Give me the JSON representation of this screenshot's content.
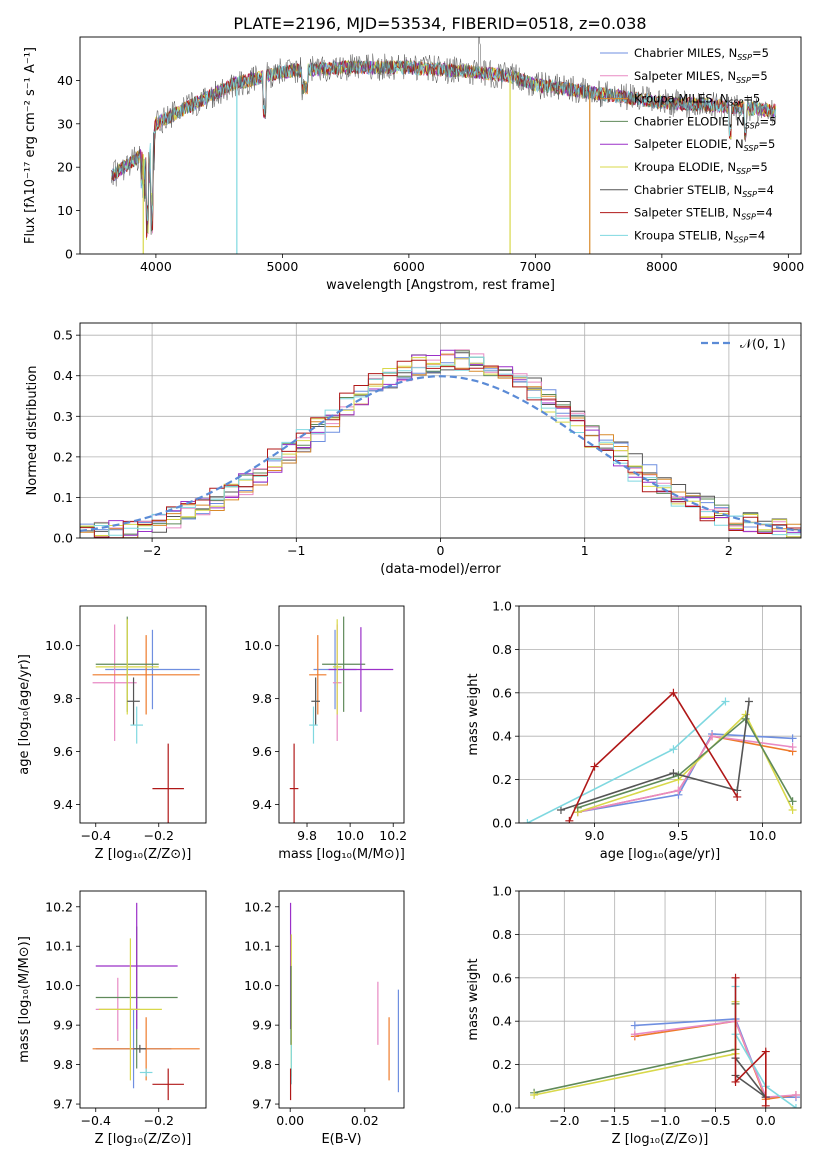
{
  "title": "PLATE=2196, MJD=53534, FIBERID=0518, z=0.038",
  "colors": {
    "chabrier_miles": "#6f8fe0",
    "salpeter_miles": "#e88ac4",
    "kroupa_miles": "#d98a2b",
    "chabrier_elodie": "#5f8a5a",
    "salpeter_elodie": "#9b30c8",
    "kroupa_elodie": "#d8d84a",
    "chabrier_stelib": "#555555",
    "salpeter_stelib": "#b01818",
    "kroupa_stelib": "#7fd8e0",
    "orange": "#ee7a2a",
    "gaussian": "#5b8bd6"
  },
  "legend_spectrum": [
    {
      "key": "chabrier_miles",
      "label": "Chabrier MILES, N",
      "sub": "SSP",
      "suffix": "=5"
    },
    {
      "key": "salpeter_miles",
      "label": "Salpeter MILES, N",
      "sub": "SSP",
      "suffix": "=5"
    },
    {
      "key": "kroupa_miles",
      "label": "Kroupa MILES, N",
      "sub": "SSP",
      "suffix": "=5"
    },
    {
      "key": "chabrier_elodie",
      "label": "Chabrier ELODIE, N",
      "sub": "SSP",
      "suffix": "=5"
    },
    {
      "key": "salpeter_elodie",
      "label": "Salpeter ELODIE, N",
      "sub": "SSP",
      "suffix": "=5"
    },
    {
      "key": "kroupa_elodie",
      "label": "Kroupa ELODIE, N",
      "sub": "SSP",
      "suffix": "=5"
    },
    {
      "key": "chabrier_stelib",
      "label": "Chabrier STELIB, N",
      "sub": "SSP",
      "suffix": "=4"
    },
    {
      "key": "salpeter_stelib",
      "label": "Salpeter STELIB, N",
      "sub": "SSP",
      "suffix": "=4"
    },
    {
      "key": "kroupa_stelib",
      "label": "Kroupa STELIB, N",
      "sub": "SSP",
      "suffix": "=4"
    }
  ],
  "chart_data": [
    {
      "id": "spectrum",
      "type": "line",
      "xlabel": "wavelength [Angstrom, rest frame]",
      "ylabel": "Flux [fλ10⁻¹⁷ erg cm⁻² s⁻¹ A⁻¹]",
      "xlim": [
        3400,
        9100
      ],
      "ylim": [
        0,
        50
      ],
      "xticks": [
        "4000",
        "5000",
        "6000",
        "7000",
        "8000",
        "9000"
      ],
      "yticks": [
        "0",
        "10",
        "20",
        "30",
        "40"
      ],
      "continuum": [
        [
          3650,
          18
        ],
        [
          3800,
          21
        ],
        [
          3950,
          24
        ],
        [
          4000,
          30
        ],
        [
          4200,
          33
        ],
        [
          4400,
          36
        ],
        [
          4600,
          39
        ],
        [
          5000,
          42
        ],
        [
          5500,
          43
        ],
        [
          6000,
          43
        ],
        [
          6500,
          42
        ],
        [
          6800,
          41
        ],
        [
          7000,
          39
        ],
        [
          7500,
          37
        ],
        [
          8000,
          35
        ],
        [
          8500,
          34
        ],
        [
          8900,
          33
        ]
      ],
      "dropouts": [
        {
          "key": "kroupa_elodie",
          "x": 3900
        },
        {
          "key": "kroupa_stelib",
          "x": 4640
        },
        {
          "key": "kroupa_elodie",
          "x": 6800
        },
        {
          "key": "kroupa_miles",
          "x": 7430
        }
      ]
    },
    {
      "id": "residuals",
      "type": "histogram",
      "xlabel": "(data-model)/error",
      "ylabel": "Normed distribution",
      "xlim": [
        -2.5,
        2.5
      ],
      "ylim": [
        0,
        0.53
      ],
      "xticks": [
        "−2",
        "−1",
        "0",
        "1",
        "2"
      ],
      "yticks": [
        "0.0",
        "0.1",
        "0.2",
        "0.3",
        "0.4",
        "0.5"
      ],
      "bin_width": 0.1,
      "gaussian_label": "𝒩(0, 1)"
    },
    {
      "id": "Z_vs_age",
      "type": "errorbar",
      "xlabel": "Z [log₁₀(Z/Z⊙)]",
      "ylabel": "age  [log₁₀(age/yr)]",
      "xlim": [
        -0.45,
        -0.05
      ],
      "ylim": [
        9.33,
        10.15
      ],
      "xticks": [
        -0.4,
        -0.2
      ],
      "yticks": [
        9.4,
        9.6,
        9.8,
        10.0
      ],
      "points": [
        {
          "key": "chabrier_miles",
          "x": -0.22,
          "xerr": 0.15,
          "y": 9.91,
          "yerr": 0.15
        },
        {
          "key": "salpeter_miles",
          "x": -0.34,
          "xerr": 0.07,
          "y": 9.86,
          "yerr": 0.22
        },
        {
          "key": "orange",
          "x": -0.24,
          "xerr": 0.17,
          "y": 9.89,
          "yerr": 0.15
        },
        {
          "key": "chabrier_elodie",
          "x": -0.3,
          "xerr": 0.1,
          "y": 9.93,
          "yerr": 0.18
        },
        {
          "key": "kroupa_elodie",
          "x": -0.3,
          "xerr": 0.1,
          "y": 9.92,
          "yerr": 0.18
        },
        {
          "key": "chabrier_stelib",
          "x": -0.28,
          "xerr": 0.02,
          "y": 9.79,
          "yerr": 0.09
        },
        {
          "key": "kroupa_stelib",
          "x": -0.27,
          "xerr": 0.02,
          "y": 9.7,
          "yerr": 0.07
        },
        {
          "key": "salpeter_stelib",
          "x": -0.17,
          "xerr": 0.05,
          "y": 9.46,
          "yerr": 0.17
        }
      ]
    },
    {
      "id": "mass_vs_age",
      "type": "errorbar",
      "xlabel": "mass [log₁₀(M/M⊙)]",
      "ylabel": "",
      "xlim": [
        9.67,
        10.25
      ],
      "ylim": [
        9.33,
        10.15
      ],
      "xticks": [
        9.8,
        10.0,
        10.2
      ],
      "yticks": [
        9.4,
        9.6,
        9.8,
        10.0
      ],
      "points": [
        {
          "key": "chabrier_miles",
          "x": 9.93,
          "xerr": 0.1,
          "y": 9.91,
          "yerr": 0.15
        },
        {
          "key": "salpeter_miles",
          "x": 9.94,
          "xerr": 0.02,
          "y": 9.86,
          "yerr": 0.22
        },
        {
          "key": "orange",
          "x": 9.85,
          "xerr": 0.04,
          "y": 9.89,
          "yerr": 0.15
        },
        {
          "key": "chabrier_elodie",
          "x": 9.97,
          "xerr": 0.1,
          "y": 9.93,
          "yerr": 0.18
        },
        {
          "key": "salpeter_elodie",
          "x": 10.05,
          "xerr": 0.15,
          "y": 9.91,
          "yerr": 0.16
        },
        {
          "key": "kroupa_elodie",
          "x": 9.94,
          "xerr": 0.02,
          "y": 9.92,
          "yerr": 0.18
        },
        {
          "key": "chabrier_stelib",
          "x": 9.84,
          "xerr": 0.02,
          "y": 9.79,
          "yerr": 0.09
        },
        {
          "key": "kroupa_stelib",
          "x": 9.83,
          "xerr": 0.02,
          "y": 9.7,
          "yerr": 0.07
        },
        {
          "key": "salpeter_stelib",
          "x": 9.74,
          "xerr": 0.02,
          "y": 9.46,
          "yerr": 0.17
        }
      ]
    },
    {
      "id": "age_vs_weight",
      "type": "line",
      "xlabel": "age  [log₁₀(age/yr)]",
      "ylabel": "mass weight",
      "xlim": [
        8.55,
        10.23
      ],
      "ylim": [
        0,
        1.0
      ],
      "xticks": [
        9.0,
        9.5,
        10.0
      ],
      "yticks": [
        0.0,
        0.2,
        0.4,
        0.6,
        0.8,
        1.0
      ],
      "series": [
        {
          "key": "chabrier_miles",
          "points": [
            [
              8.9,
              0.05
            ],
            [
              9.5,
              0.13
            ],
            [
              9.7,
              0.41
            ],
            [
              10.18,
              0.39
            ]
          ]
        },
        {
          "key": "orange",
          "points": [
            [
              8.9,
              0.05
            ],
            [
              9.5,
              0.15
            ],
            [
              9.7,
              0.4
            ],
            [
              10.18,
              0.33
            ]
          ]
        },
        {
          "key": "salpeter_miles",
          "points": [
            [
              8.9,
              0.05
            ],
            [
              9.5,
              0.15
            ],
            [
              9.7,
              0.4
            ],
            [
              10.18,
              0.35
            ]
          ]
        },
        {
          "key": "kroupa_elodie",
          "points": [
            [
              8.9,
              0.05
            ],
            [
              9.5,
              0.2
            ],
            [
              9.9,
              0.5
            ],
            [
              10.18,
              0.06
            ]
          ]
        },
        {
          "key": "chabrier_elodie",
          "points": [
            [
              8.9,
              0.07
            ],
            [
              9.5,
              0.22
            ],
            [
              9.9,
              0.48
            ],
            [
              10.18,
              0.1
            ]
          ]
        },
        {
          "key": "chabrier_stelib",
          "points": [
            [
              8.8,
              0.06
            ],
            [
              9.47,
              0.23
            ],
            [
              9.85,
              0.15
            ],
            [
              9.92,
              0.56
            ]
          ]
        },
        {
          "key": "kroupa_stelib",
          "points": [
            [
              8.6,
              0.0
            ],
            [
              9.47,
              0.34
            ],
            [
              9.78,
              0.56
            ]
          ]
        },
        {
          "key": "salpeter_stelib",
          "points": [
            [
              8.85,
              0.01
            ],
            [
              9.0,
              0.26
            ],
            [
              9.47,
              0.6
            ],
            [
              9.85,
              0.12
            ]
          ]
        }
      ]
    },
    {
      "id": "Z_vs_mass",
      "type": "errorbar",
      "xlabel": "Z [log₁₀(Z/Z⊙)]",
      "ylabel": "mass [log₁₀(M/M⊙)]",
      "xlim": [
        -0.45,
        -0.05
      ],
      "ylim": [
        9.69,
        10.24
      ],
      "xticks": [
        -0.4,
        -0.2
      ],
      "yticks": [
        9.7,
        9.8,
        9.9,
        10.0,
        10.1,
        10.2
      ],
      "points": [
        {
          "key": "chabrier_miles",
          "x": -0.28,
          "xerr": 0.12,
          "y": 9.84,
          "yerr": 0.1
        },
        {
          "key": "salpeter_miles",
          "x": -0.33,
          "xerr": 0.07,
          "y": 9.94,
          "yerr": 0.08
        },
        {
          "key": "orange",
          "x": -0.24,
          "xerr": 0.17,
          "y": 9.84,
          "yerr": 0.08
        },
        {
          "key": "chabrier_elodie",
          "x": -0.27,
          "xerr": 0.13,
          "y": 9.97,
          "yerr": 0.18
        },
        {
          "key": "salpeter_elodie",
          "x": -0.27,
          "xerr": 0.13,
          "y": 10.05,
          "yerr": 0.16
        },
        {
          "key": "kroupa_elodie",
          "x": -0.29,
          "xerr": 0.1,
          "y": 9.94,
          "yerr": 0.18
        },
        {
          "key": "chabrier_stelib",
          "x": -0.26,
          "xerr": 0.02,
          "y": 9.84,
          "yerr": 0.01
        },
        {
          "key": "kroupa_stelib",
          "x": -0.24,
          "xerr": 0.02,
          "y": 9.78,
          "yerr": 0.01
        },
        {
          "key": "salpeter_stelib",
          "x": -0.17,
          "xerr": 0.05,
          "y": 9.75,
          "yerr": 0.04
        }
      ]
    },
    {
      "id": "EBV_vs_mass",
      "type": "errorbar",
      "xlabel": "E(B-V)",
      "ylabel": "",
      "xlim": [
        -0.003,
        0.0305
      ],
      "ylim": [
        9.69,
        10.24
      ],
      "xticks": [
        0.0,
        0.02
      ],
      "yticks": [
        9.7,
        9.8,
        9.9,
        10.0,
        10.1,
        10.2
      ],
      "points": [
        {
          "key": "chabrier_miles",
          "x": 0.029,
          "xerr": 0.0,
          "y": 9.86,
          "yerr": 0.13
        },
        {
          "key": "salpeter_miles",
          "x": 0.0235,
          "xerr": 0.0,
          "y": 9.93,
          "yerr": 0.08
        },
        {
          "key": "orange",
          "x": 0.0265,
          "xerr": 0.0,
          "y": 9.84,
          "yerr": 0.08
        },
        {
          "key": "salpeter_elodie",
          "x": 0.0001,
          "xerr": 0.0,
          "y": 10.05,
          "yerr": 0.16
        },
        {
          "key": "kroupa_elodie",
          "x": 0.0003,
          "xerr": 0.0,
          "y": 9.95,
          "yerr": 0.18
        },
        {
          "key": "chabrier_elodie",
          "x": 0.0002,
          "xerr": 0.0,
          "y": 9.95,
          "yerr": 0.1
        },
        {
          "key": "kroupa_stelib",
          "x": 0.0003,
          "xerr": 0.0,
          "y": 9.8,
          "yerr": 0.05
        },
        {
          "key": "salpeter_stelib",
          "x": 0.0001,
          "xerr": 0.0,
          "y": 9.75,
          "yerr": 0.04
        }
      ]
    },
    {
      "id": "Z_vs_weight",
      "type": "line",
      "xlabel": "Z [log₁₀(Z/Z⊙)]",
      "ylabel": "mass weight",
      "xlim": [
        -2.45,
        0.35
      ],
      "ylim": [
        0,
        1.0
      ],
      "xticks": [
        -2.0,
        -1.5,
        -1.0,
        -0.5,
        0.0
      ],
      "yticks": [
        0.0,
        0.2,
        0.4,
        0.6,
        0.8,
        1.0
      ],
      "series": [
        {
          "key": "chabrier_miles",
          "points": [
            [
              -1.3,
              0.38
            ],
            [
              -0.3,
              0.41
            ],
            [
              0.0,
              0.05
            ],
            [
              0.3,
              0.05
            ]
          ]
        },
        {
          "key": "orange",
          "points": [
            [
              -1.3,
              0.33
            ],
            [
              -0.3,
              0.4
            ],
            [
              0.0,
              0.04
            ],
            [
              0.3,
              0.06
            ]
          ]
        },
        {
          "key": "salpeter_miles",
          "points": [
            [
              -1.3,
              0.34
            ],
            [
              -0.3,
              0.4
            ],
            [
              0.0,
              0.05
            ],
            [
              0.3,
              0.06
            ]
          ]
        },
        {
          "key": "chabrier_elodie",
          "points": [
            [
              -2.3,
              0.07
            ],
            [
              -0.3,
              0.27
            ],
            [
              -0.3,
              0.48
            ]
          ]
        },
        {
          "key": "kroupa_elodie",
          "points": [
            [
              -2.3,
              0.06
            ],
            [
              -0.3,
              0.25
            ],
            [
              -0.3,
              0.49
            ]
          ]
        },
        {
          "key": "chabrier_stelib",
          "points": [
            [
              -0.3,
              0.15
            ],
            [
              0.0,
              0.05
            ],
            [
              -0.3,
              0.23
            ]
          ]
        },
        {
          "key": "kroupa_stelib",
          "points": [
            [
              -0.3,
              0.56
            ],
            [
              -0.3,
              0.34
            ],
            [
              0.0,
              0.1
            ],
            [
              0.3,
              0.0
            ]
          ]
        },
        {
          "key": "salpeter_stelib",
          "points": [
            [
              -0.3,
              0.6
            ],
            [
              -0.3,
              0.12
            ],
            [
              0.0,
              0.26
            ],
            [
              0.0,
              0.01
            ]
          ]
        }
      ]
    }
  ]
}
